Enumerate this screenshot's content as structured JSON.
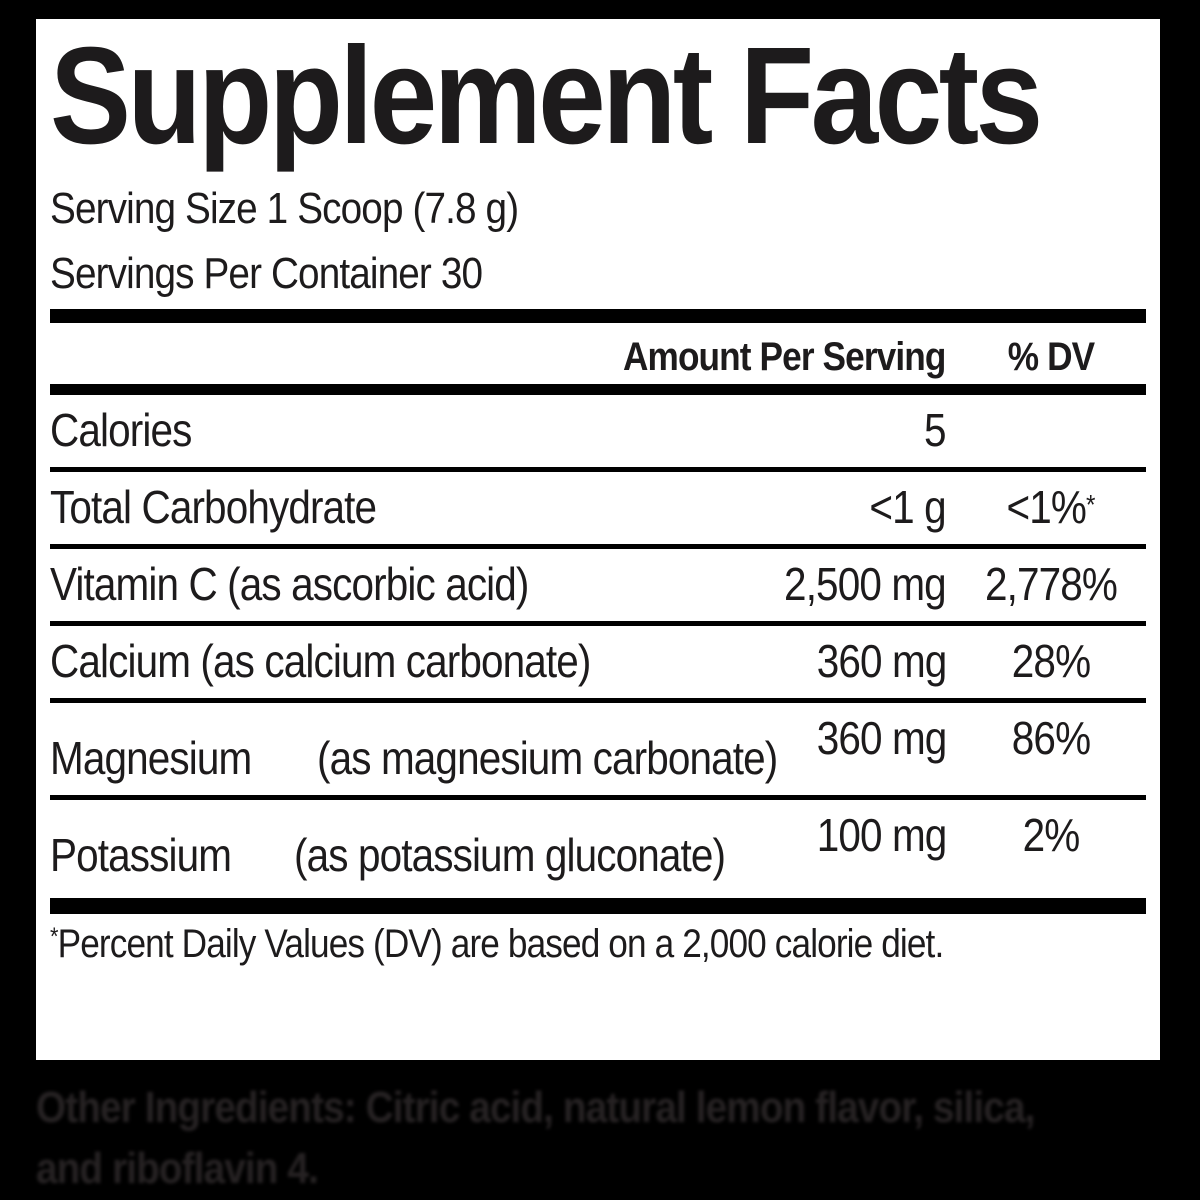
{
  "label": {
    "title": "Supplement Facts",
    "serving_size": "Serving Size 1 Scoop (7.8 g)",
    "servings_per_container": "Servings Per Container 30",
    "columns": {
      "amount": "Amount Per Serving",
      "dv": "% DV"
    },
    "rows": [
      {
        "name": "Calories",
        "sub": "",
        "amount": "5",
        "dv": "",
        "dv_sup": ""
      },
      {
        "name": "Total Carbohydrate",
        "sub": "",
        "amount": "<1 g",
        "dv": "<1%",
        "dv_sup": "*"
      },
      {
        "name": "Vitamin C (as ascorbic acid)",
        "sub": "",
        "amount": "2,500 mg",
        "dv": "2,778%",
        "dv_sup": ""
      },
      {
        "name": "Calcium (as calcium carbonate)",
        "sub": "",
        "amount": "360 mg",
        "dv": "28%",
        "dv_sup": ""
      },
      {
        "name": "Magnesium",
        "sub": "(as magnesium carbonate)",
        "amount": "360 mg",
        "dv": "86%",
        "dv_sup": ""
      },
      {
        "name": "Potassium",
        "sub": "(as potassium gluconate)",
        "amount": "100 mg",
        "dv": "2%",
        "dv_sup": ""
      }
    ],
    "footnote_marker": "*",
    "footnote": "Percent Daily Values (DV) are based on a 2,000 calorie diet."
  },
  "other_ingredients": {
    "label": "Other Ingredients:",
    "line1_rest": " Citric acid, natural lemon flavor, silica,",
    "line2": "and riboflavin 4."
  },
  "colors": {
    "background": "#000000",
    "panel": "#ffffff",
    "text": "#1d1b1c",
    "rule": "#000000",
    "outside_text": "#262223"
  }
}
